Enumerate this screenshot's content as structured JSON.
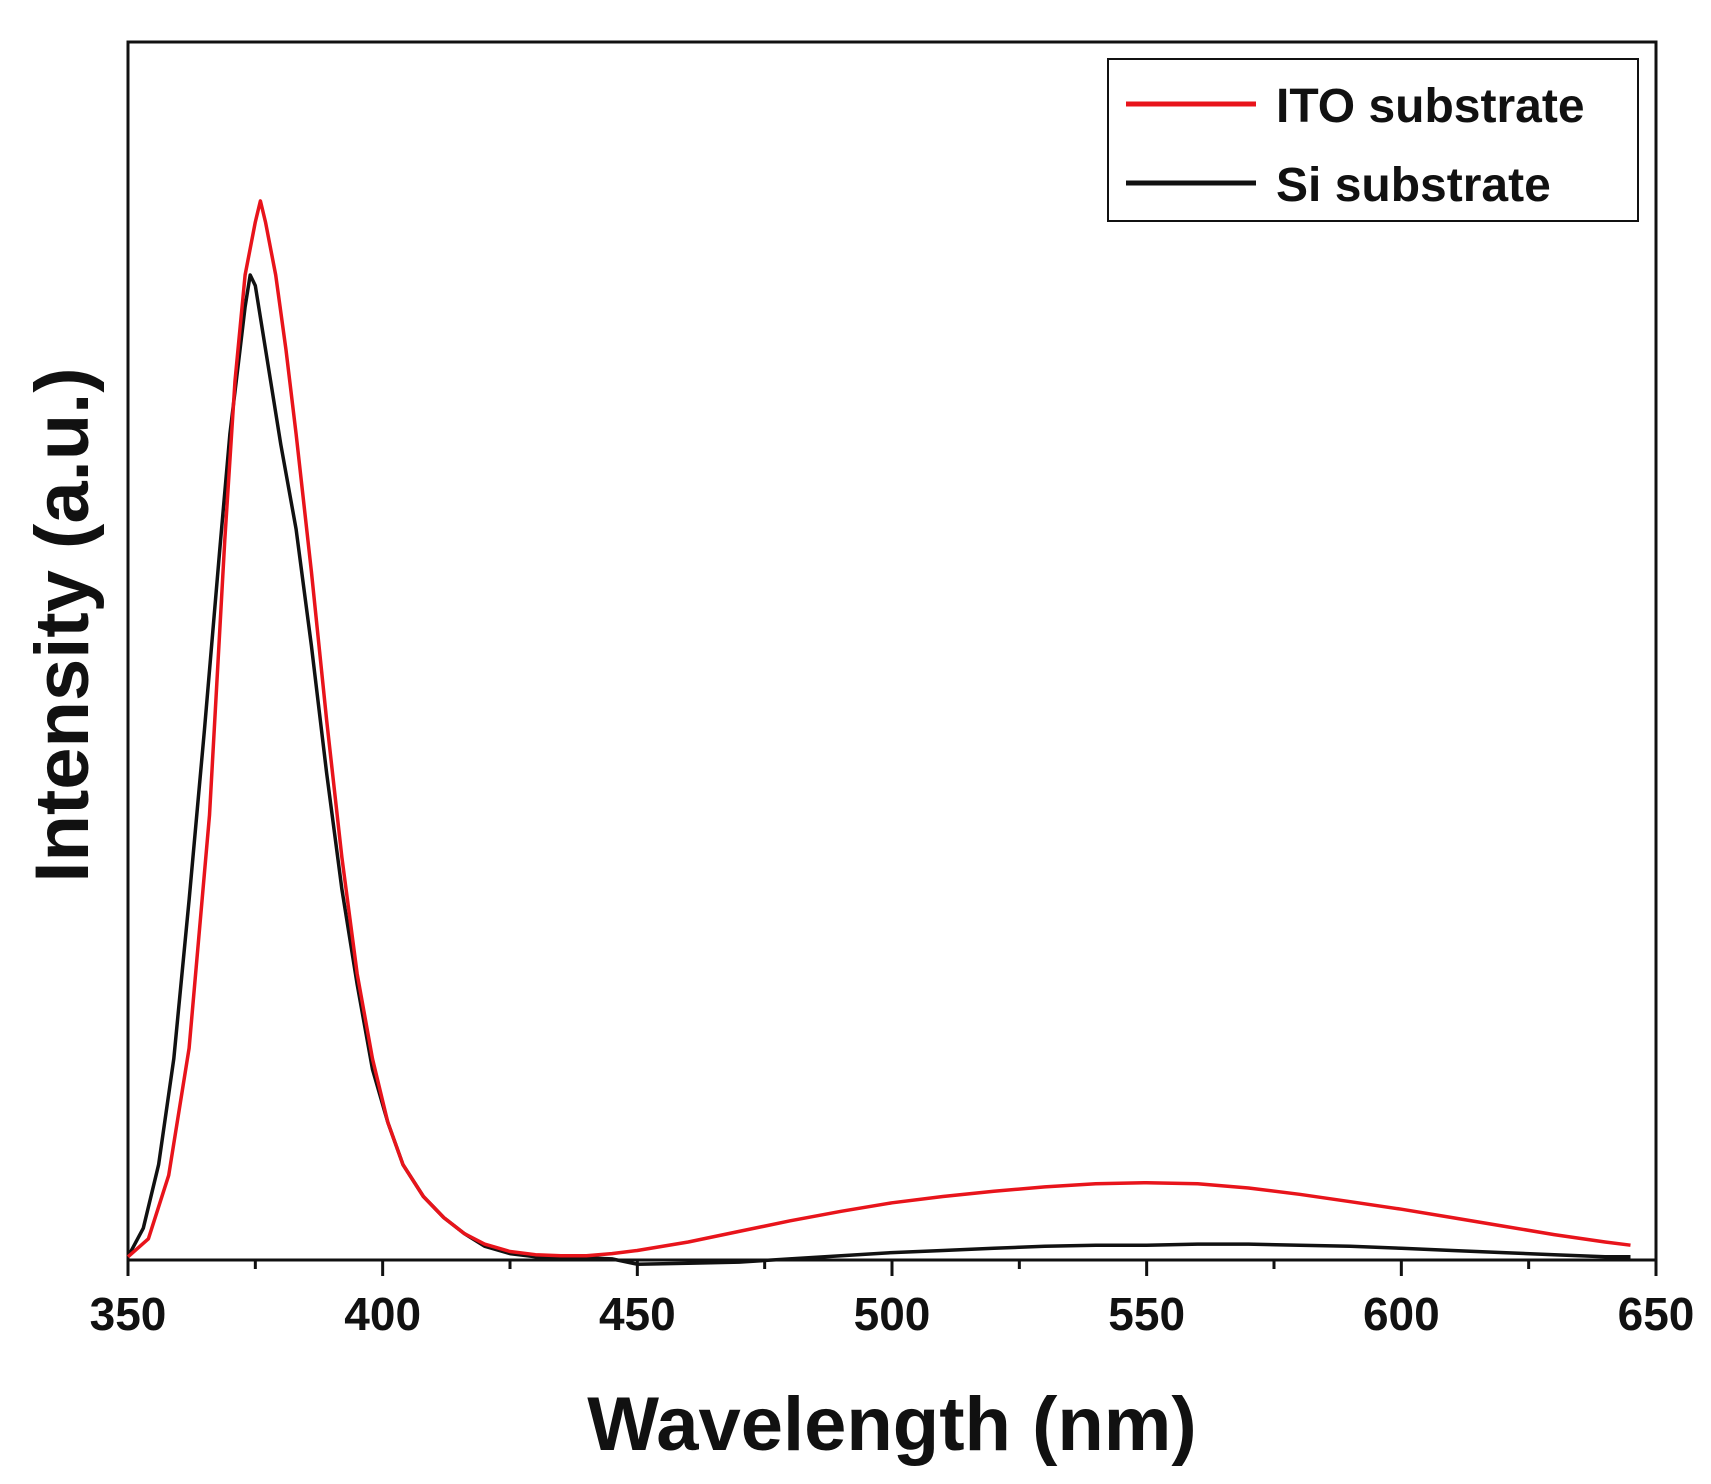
{
  "chart_data": {
    "type": "line",
    "title": "",
    "xlabel": "Wavelength (nm)",
    "ylabel": "Intensity (a.u.)",
    "xlim": [
      350,
      650
    ],
    "ylim": [
      0,
      1.15
    ],
    "x_ticks": [
      350,
      400,
      450,
      500,
      550,
      600,
      650
    ],
    "x_tick_labels": [
      "350",
      "400",
      "450",
      "500",
      "550",
      "600",
      "650"
    ],
    "y_ticks": [],
    "grid": false,
    "legend_position": "top-right",
    "series": [
      {
        "name": "ITO substrate",
        "color": "#e8141b",
        "x": [
          350,
          354,
          358,
          362,
          366,
          369,
          371,
          373,
          375,
          376,
          377,
          379,
          381,
          383,
          386,
          389,
          392,
          395,
          398,
          401,
          404,
          408,
          412,
          416,
          420,
          425,
          430,
          435,
          440,
          445,
          450,
          460,
          470,
          480,
          490,
          500,
          510,
          520,
          530,
          540,
          550,
          560,
          570,
          580,
          590,
          600,
          610,
          620,
          630,
          640,
          645
        ],
        "y": [
          0.003,
          0.02,
          0.08,
          0.2,
          0.42,
          0.68,
          0.83,
          0.93,
          0.98,
          1.0,
          0.98,
          0.93,
          0.86,
          0.78,
          0.65,
          0.51,
          0.38,
          0.27,
          0.19,
          0.13,
          0.09,
          0.06,
          0.04,
          0.025,
          0.015,
          0.008,
          0.005,
          0.004,
          0.004,
          0.006,
          0.009,
          0.017,
          0.027,
          0.037,
          0.046,
          0.054,
          0.06,
          0.065,
          0.069,
          0.072,
          0.073,
          0.072,
          0.068,
          0.062,
          0.055,
          0.048,
          0.04,
          0.032,
          0.024,
          0.017,
          0.014
        ]
      },
      {
        "name": "Si substrate",
        "color": "#111111",
        "x": [
          350,
          353,
          356,
          359,
          362,
          365,
          368,
          370,
          372,
          373,
          374,
          375,
          376,
          378,
          380,
          383,
          386,
          389,
          392,
          395,
          398,
          401,
          404,
          408,
          412,
          416,
          420,
          425,
          430,
          435,
          440,
          445,
          450,
          460,
          470,
          480,
          490,
          500,
          510,
          520,
          530,
          540,
          550,
          560,
          570,
          580,
          590,
          600,
          610,
          620,
          630,
          640,
          645
        ],
        "y": [
          0.003,
          0.03,
          0.09,
          0.19,
          0.34,
          0.5,
          0.67,
          0.78,
          0.86,
          0.9,
          0.93,
          0.92,
          0.89,
          0.83,
          0.77,
          0.69,
          0.58,
          0.46,
          0.35,
          0.26,
          0.18,
          0.13,
          0.09,
          0.06,
          0.04,
          0.025,
          0.013,
          0.006,
          0.003,
          0.002,
          0.002,
          0.001,
          -0.004,
          -0.003,
          -0.002,
          0.001,
          0.004,
          0.007,
          0.009,
          0.011,
          0.013,
          0.014,
          0.014,
          0.015,
          0.015,
          0.014,
          0.013,
          0.011,
          0.009,
          0.007,
          0.005,
          0.003,
          0.003
        ]
      }
    ]
  }
}
